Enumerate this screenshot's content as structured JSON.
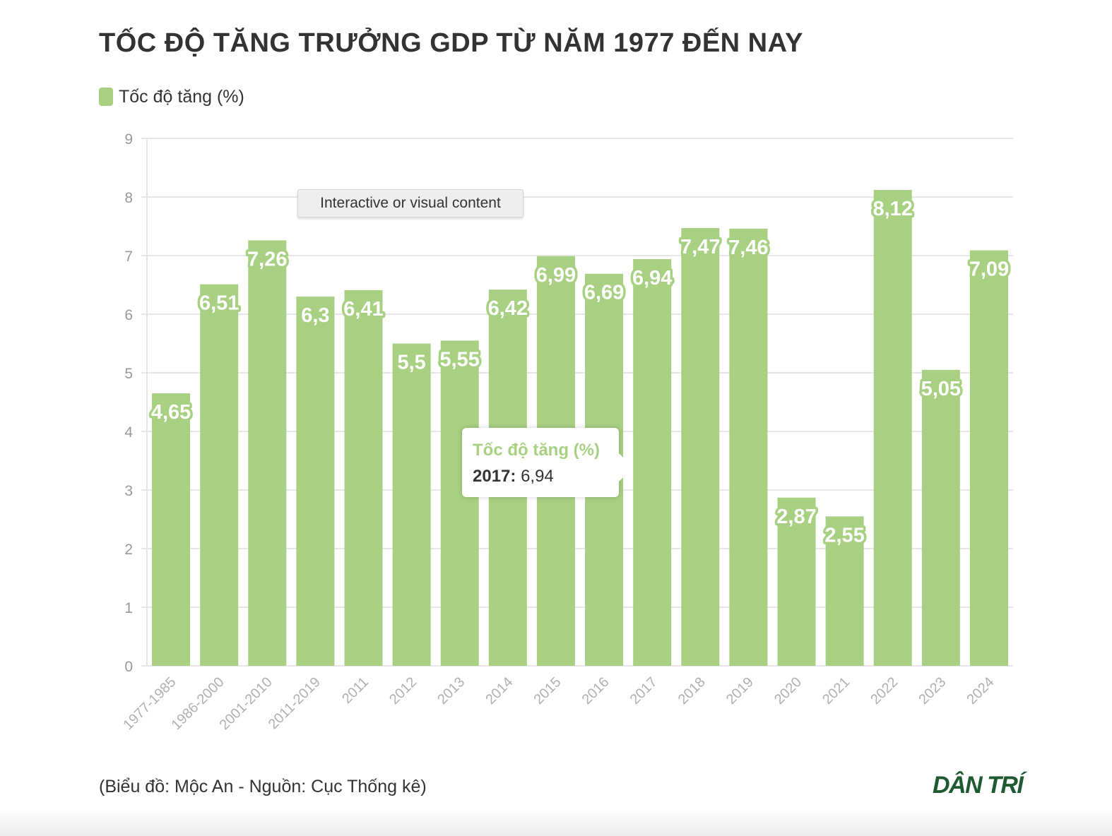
{
  "title": "TỐC ĐỘ TĂNG TRƯỞNG GDP TỪ NĂM 1977 ĐẾN NAY",
  "legend": {
    "label": "Tốc độ tăng (%)",
    "color": "#a8d083"
  },
  "overlay_note": "Interactive or visual content",
  "tooltip": {
    "series": "Tốc độ tăng (%)",
    "category": "2017:",
    "value": "6,94"
  },
  "footer": {
    "source": "(Biểu đồ: Mộc An - Nguồn: Cục Thống kê)",
    "brand": "DÂN TRÍ",
    "brand_color": "#1f5a32"
  },
  "chart_data": {
    "type": "bar",
    "title": "TỐC ĐỘ TĂNG TRƯỞNG GDP TỪ NĂM 1977 ĐẾN NAY",
    "xlabel": "",
    "ylabel": "",
    "ylim": [
      0,
      9
    ],
    "yticks": [
      0,
      1,
      2,
      3,
      4,
      5,
      6,
      7,
      8,
      9
    ],
    "grid": true,
    "legend_position": "top-left",
    "categories": [
      "1977-1985",
      "1986-2000",
      "2001-2010",
      "2011-2019",
      "2011",
      "2012",
      "2013",
      "2014",
      "2015",
      "2016",
      "2017",
      "2018",
      "2019",
      "2020",
      "2021",
      "2022",
      "2023",
      "2024"
    ],
    "series": [
      {
        "name": "Tốc độ tăng (%)",
        "color": "#a8d083",
        "values": [
          4.65,
          6.51,
          7.26,
          6.3,
          6.41,
          5.5,
          5.55,
          6.42,
          6.99,
          6.69,
          6.94,
          7.47,
          7.46,
          2.87,
          2.55,
          8.12,
          5.05,
          7.09
        ],
        "labels": [
          "4,65",
          "6,51",
          "7,26",
          "6,3",
          "6,41",
          "5,5",
          "5,55",
          "6,42",
          "6,99",
          "6,69",
          "6,94",
          "7,47",
          "7,46",
          "2,87",
          "2,55",
          "8,12",
          "5,05",
          "7,09"
        ]
      }
    ]
  }
}
